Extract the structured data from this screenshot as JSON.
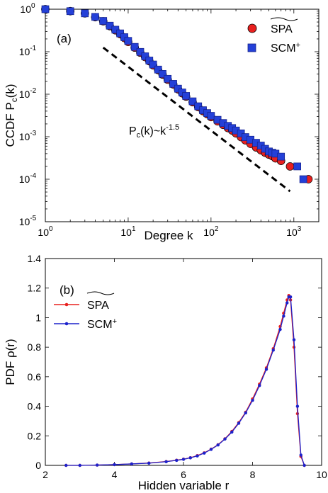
{
  "chart_data": [
    {
      "type": "scatter",
      "panel_label": "(a)",
      "xlabel": "Degree k",
      "ylabel": "CCDF P",
      "ylabel_sub": "c",
      "ylabel_tail": "(k)",
      "x_scale": "log",
      "y_scale": "log",
      "xlim": [
        1,
        2000
      ],
      "ylim": [
        1e-05,
        1
      ],
      "x_ticks": [
        {
          "base": "10",
          "exp": "0",
          "value": 1
        },
        {
          "base": "10",
          "exp": "1",
          "value": 10
        },
        {
          "base": "10",
          "exp": "2",
          "value": 100
        },
        {
          "base": "10",
          "exp": "3",
          "value": 1000
        }
      ],
      "y_ticks": [
        {
          "base": "10",
          "exp": "0",
          "value": 1
        },
        {
          "base": "10",
          "exp": "-1",
          "value": 0.1
        },
        {
          "base": "10",
          "exp": "-2",
          "value": 0.01
        },
        {
          "base": "10",
          "exp": "-3",
          "value": 0.001
        },
        {
          "base": "10",
          "exp": "-4",
          "value": 0.0001
        },
        {
          "base": "10",
          "exp": "-5",
          "value": 1e-05
        }
      ],
      "grid": false,
      "legend_position": "top-right",
      "annotation": {
        "pre": "P",
        "sub": "c",
        "mid": "(k)~k",
        "sup": "-1.5"
      },
      "reference_line": {
        "style": "dashed",
        "color": "#000000",
        "slope": -1.5,
        "x": [
          5,
          900
        ],
        "y": [
          0.125,
          5.2e-05
        ]
      },
      "series": [
        {
          "name": "SPA",
          "marker": "circle",
          "color": "#e8201f",
          "x": [
            1,
            2,
            3,
            4,
            5,
            6,
            7,
            8,
            9,
            10,
            12,
            14,
            16,
            18,
            20,
            23,
            26,
            30,
            35,
            40,
            45,
            50,
            60,
            70,
            80,
            90,
            100,
            120,
            140,
            160,
            180,
            200,
            230,
            260,
            300,
            350,
            400,
            450,
            500,
            550,
            600,
            700,
            900,
            1500
          ],
          "y": [
            1,
            0.9,
            0.8,
            0.65,
            0.52,
            0.4,
            0.32,
            0.26,
            0.21,
            0.17,
            0.125,
            0.095,
            0.075,
            0.06,
            0.048,
            0.037,
            0.029,
            0.022,
            0.017,
            0.013,
            0.0105,
            0.0088,
            0.0065,
            0.005,
            0.004,
            0.0034,
            0.0029,
            0.0023,
            0.0019,
            0.0016,
            0.0014,
            0.0012,
            0.00098,
            0.00082,
            0.00068,
            0.00056,
            0.00048,
            0.00042,
            0.00038,
            0.00035,
            0.00031,
            0.00027,
            0.0002,
            0.0001
          ]
        },
        {
          "name": "SCM",
          "name_sup": "+",
          "marker": "square",
          "color": "#2440d8",
          "x": [
            1,
            2,
            3,
            4,
            5,
            6,
            7,
            8,
            9,
            10,
            12,
            14,
            16,
            18,
            20,
            23,
            26,
            30,
            35,
            40,
            45,
            50,
            60,
            70,
            80,
            90,
            100,
            120,
            140,
            160,
            180,
            200,
            230,
            260,
            300,
            350,
            400,
            450,
            500,
            550,
            600,
            700,
            1100,
            1300
          ],
          "y": [
            1,
            0.9,
            0.8,
            0.66,
            0.53,
            0.41,
            0.33,
            0.27,
            0.22,
            0.18,
            0.13,
            0.099,
            0.078,
            0.062,
            0.05,
            0.038,
            0.03,
            0.023,
            0.0175,
            0.0135,
            0.011,
            0.0091,
            0.0068,
            0.0052,
            0.0042,
            0.0036,
            0.0031,
            0.0025,
            0.0021,
            0.0018,
            0.0016,
            0.0014,
            0.0012,
            0.00098,
            0.00085,
            0.00072,
            0.00062,
            0.00052,
            0.00045,
            0.00042,
            0.0004,
            0.00034,
            0.0002,
            0.0001
          ]
        }
      ]
    },
    {
      "type": "line",
      "panel_label": "(b)",
      "xlabel": "Hidden variable r",
      "ylabel": "PDF ρ(r)",
      "xlim": [
        2,
        10
      ],
      "ylim": [
        0,
        1.4
      ],
      "x_ticks": [
        2,
        4,
        6,
        8,
        10
      ],
      "y_ticks": [
        "0",
        "0.2",
        "0.4",
        "0.6",
        "0.8",
        "1",
        "1.2",
        "1.4"
      ],
      "grid": false,
      "legend_position": "top-left",
      "series": [
        {
          "name": "SPA",
          "marker": "dot",
          "color": "#e8201f",
          "x": [
            2.6,
            3.0,
            3.5,
            4.0,
            4.5,
            5.0,
            5.5,
            5.8,
            6.0,
            6.2,
            6.4,
            6.6,
            6.8,
            7.0,
            7.2,
            7.4,
            7.6,
            7.8,
            8.0,
            8.2,
            8.4,
            8.6,
            8.8,
            8.9,
            9.0,
            9.05,
            9.1,
            9.2,
            9.3,
            9.4,
            9.5
          ],
          "y": [
            0,
            0,
            0.002,
            0.005,
            0.01,
            0.016,
            0.026,
            0.035,
            0.042,
            0.052,
            0.066,
            0.085,
            0.11,
            0.14,
            0.18,
            0.23,
            0.29,
            0.36,
            0.45,
            0.55,
            0.66,
            0.79,
            0.94,
            1.03,
            1.12,
            1.15,
            1.12,
            0.8,
            0.35,
            0.06,
            0
          ]
        },
        {
          "name": "SCM",
          "name_sup": "+",
          "marker": "dot",
          "color": "#1c22cc",
          "x": [
            2.6,
            3.0,
            3.5,
            4.0,
            4.5,
            5.0,
            5.5,
            5.8,
            6.0,
            6.2,
            6.4,
            6.6,
            6.8,
            7.0,
            7.2,
            7.4,
            7.6,
            7.8,
            8.0,
            8.2,
            8.4,
            8.6,
            8.8,
            8.9,
            9.0,
            9.05,
            9.1,
            9.2,
            9.3,
            9.4,
            9.5
          ],
          "y": [
            0,
            0,
            0.002,
            0.005,
            0.01,
            0.015,
            0.025,
            0.034,
            0.041,
            0.051,
            0.064,
            0.083,
            0.108,
            0.138,
            0.178,
            0.225,
            0.285,
            0.355,
            0.44,
            0.54,
            0.65,
            0.78,
            0.92,
            1.01,
            1.1,
            1.14,
            1.14,
            0.85,
            0.4,
            0.07,
            0
          ]
        }
      ]
    }
  ]
}
